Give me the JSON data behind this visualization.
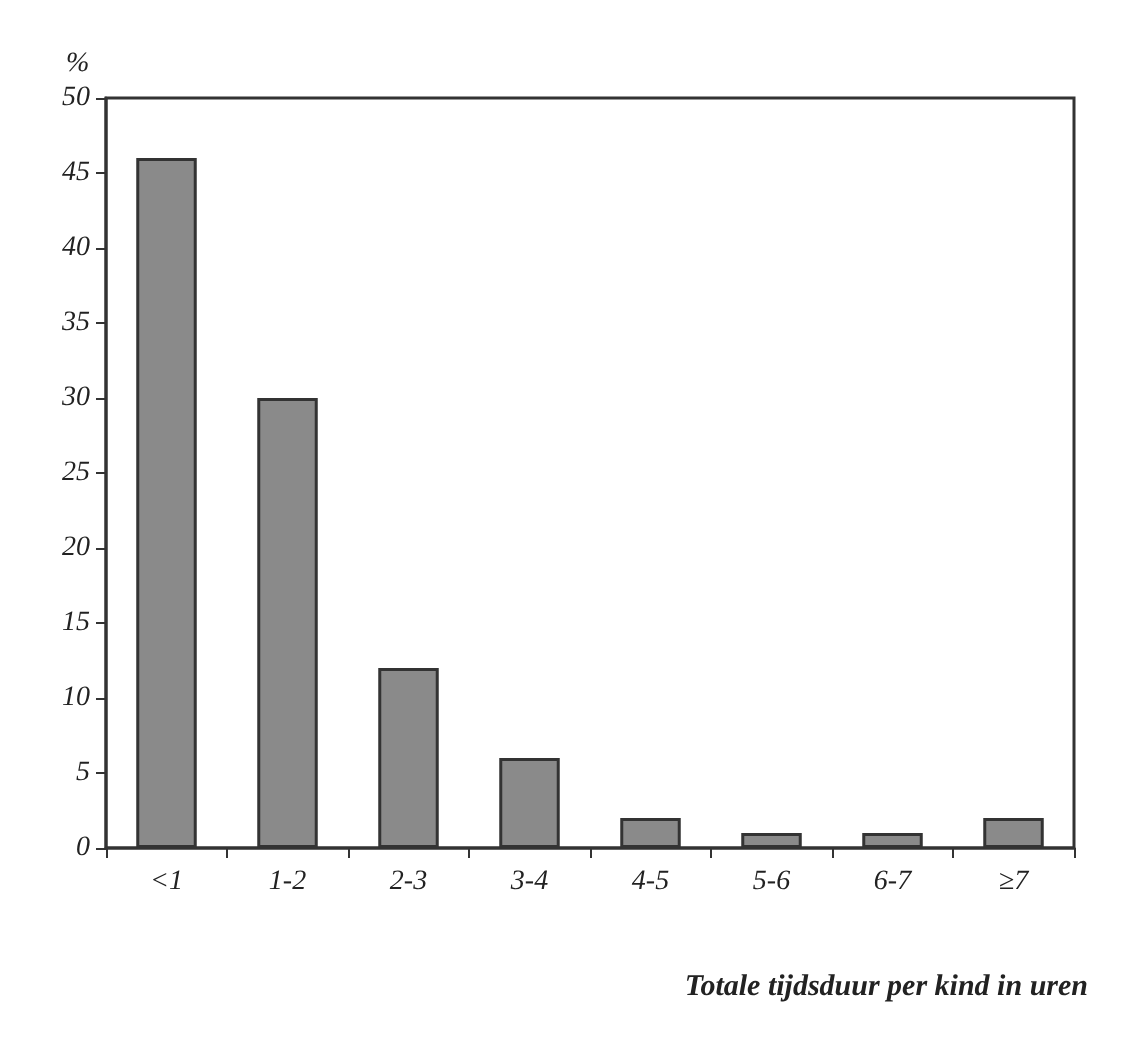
{
  "chart_data": {
    "type": "bar",
    "ylabel": "%",
    "xlabel": "Totale tijdsduur per kind in uren",
    "categories": [
      "<1",
      "1-2",
      "2-3",
      "3-4",
      "4-5",
      "5-6",
      "6-7",
      "≥7"
    ],
    "values": [
      46,
      30,
      12,
      6,
      2,
      1,
      1,
      2
    ],
    "color": "#8a8a8a",
    "ylim": [
      0,
      50
    ],
    "yticks": [
      0,
      5,
      10,
      15,
      20,
      25,
      30,
      35,
      40,
      45,
      50
    ],
    "grid": false
  }
}
